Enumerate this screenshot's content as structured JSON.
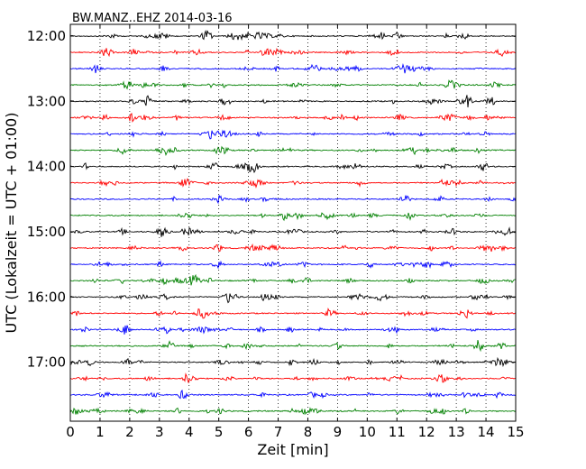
{
  "chart_data": {
    "type": "line",
    "title": "BW.MANZ..EHZ 2014-03-16",
    "xlabel": "Zeit  [min]",
    "ylabel": "UTC (Lokalzeit = UTC + 01:00)",
    "xlim": [
      0,
      15
    ],
    "x_ticks": [
      "0",
      "1",
      "2",
      "3",
      "4",
      "5",
      "6",
      "7",
      "8",
      "9",
      "10",
      "11",
      "12",
      "13",
      "14",
      "15"
    ],
    "y_tick_labels": [
      "12:00",
      "13:00",
      "14:00",
      "15:00",
      "16:00",
      "17:00"
    ],
    "grid": "vertical dotted",
    "trace_start_hour": 12,
    "trace_interval_minutes": 15,
    "trace_count": 24,
    "trace_colors": [
      "#000000",
      "#ff0000",
      "#0000ff",
      "#008000"
    ]
  }
}
